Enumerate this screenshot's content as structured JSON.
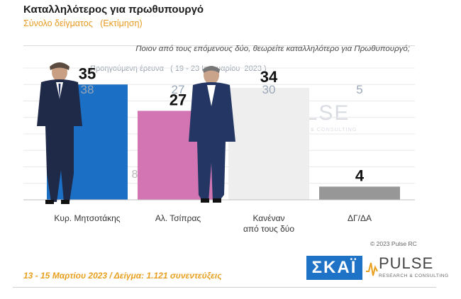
{
  "header": {
    "title": "Καταλληλότερος για πρωθυπουργό",
    "subtitle": "Σύνολο δείγματος   (Εκτίμηση)",
    "question": "Ποιον από τους επόμενους δύο, θεωρείτε καταλληλότερο για Πρωθυπουργό;",
    "previous_caption": "Προηγούμενη έρευνα   ( 19 - 23 Ιανουαρίου  2023 )"
  },
  "chart_data": {
    "type": "bar",
    "categories": [
      "Κυρ. Μητσοτάκης",
      "Αλ. Τσίπρας",
      "Κανέναν από τους δύο",
      "ΔΓ/ΔΑ"
    ],
    "category_lines": [
      [
        "Κυρ. Μητσοτάκης"
      ],
      [
        "Αλ. Τσίπρας"
      ],
      [
        "Κανέναν",
        "από τους δύο"
      ],
      [
        "ΔΓ/ΔΑ"
      ]
    ],
    "values": [
      35,
      27,
      34,
      4
    ],
    "previous_values": [
      38,
      27,
      30,
      5
    ],
    "difference_label": "8",
    "ylim": [
      0,
      40
    ],
    "colors": [
      "#1b6fc4",
      "#d275b2",
      "#eeeeee",
      "#979797"
    ],
    "grid": true
  },
  "footer": {
    "date_sample": "13 - 15 Μαρτίου  2023  /  Δείγμα:  1.121 συνεντεύξεις",
    "copyright": "© 2023 Pulse RC"
  },
  "logos": {
    "skai_text": "ΣΚΑΪ",
    "pulse_word": "PULSE",
    "pulse_sub": "RESEARCH & CONSULTING"
  }
}
